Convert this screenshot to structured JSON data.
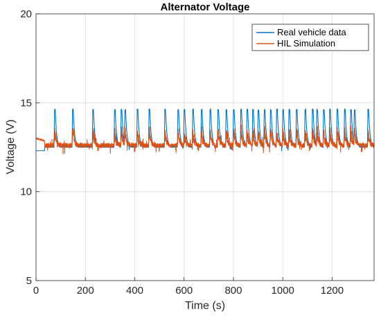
{
  "chart_data": {
    "type": "line",
    "title": "Alternator Voltage",
    "xlabel": "Time (s)",
    "ylabel": "Voltage (V)",
    "xlim": [
      0,
      1370
    ],
    "ylim": [
      5,
      20
    ],
    "xticks": [
      0,
      200,
      400,
      600,
      800,
      1000,
      1200
    ],
    "yticks": [
      5,
      10,
      15,
      20
    ],
    "grid": true,
    "legend_position": "top-right",
    "series": [
      {
        "name": "Real vehicle data",
        "color": "#0072BD",
        "baseline": 12.5,
        "initial_level": 12.3,
        "initial_until": 35,
        "peak_value": 14.6,
        "peaks": [
          75,
          148,
          230,
          318,
          345,
          360,
          410,
          458,
          522,
          575,
          600,
          635,
          670,
          705,
          737,
          770,
          800,
          830,
          855,
          878,
          900,
          925,
          950,
          975,
          1000,
          1025,
          1055,
          1090,
          1120,
          1138,
          1165,
          1190,
          1220,
          1250,
          1275,
          1290,
          1345
        ]
      },
      {
        "name": "HIL Simulation",
        "color": "#D95319",
        "baseline": 12.6,
        "initial_level": 13.0,
        "initial_until": 35,
        "peak_value": 13.7
      }
    ]
  }
}
